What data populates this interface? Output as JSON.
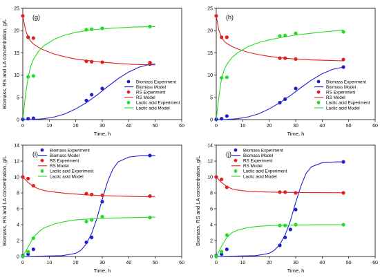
{
  "figure": {
    "common_xlabel": "Time, h",
    "common_ylabel": "Biomass, RS and LA concentration, g/L"
  },
  "chart_data": [
    {
      "type": "line",
      "panel": "(g)",
      "xlabel": "Time, h",
      "ylabel": "Biomass, RS and LA concentration, g/L",
      "xlim": [
        0,
        60
      ],
      "ylim": [
        0,
        25
      ],
      "xticks": [
        0,
        10,
        20,
        30,
        40,
        50,
        60
      ],
      "yticks": [
        0,
        5,
        10,
        15,
        20,
        25
      ],
      "legend_position": "center-right",
      "legend": [
        "Biomass Experiment",
        "Biomass Model",
        "RS Experiment",
        "RS Model",
        "Lactic acid Experiment",
        "Lactic acid Model"
      ],
      "series": [
        {
          "name": "Biomass Experiment",
          "kind": "points",
          "color": "#1f1fd1",
          "x": [
            0,
            2,
            4,
            24,
            26,
            30,
            48
          ],
          "y": [
            0.1,
            0.2,
            0.3,
            4.3,
            5.6,
            7.0,
            12.5
          ]
        },
        {
          "name": "Biomass Model",
          "kind": "line",
          "color": "#1f1fd1",
          "x": [
            0,
            4,
            8,
            12,
            16,
            20,
            24,
            28,
            32,
            36,
            40,
            44,
            48,
            50
          ],
          "y": [
            0.0,
            0.05,
            0.2,
            0.6,
            1.3,
            2.4,
            3.8,
            5.5,
            7.4,
            9.2,
            10.7,
            11.8,
            12.4,
            12.5
          ]
        },
        {
          "name": "RS Experiment",
          "kind": "points",
          "color": "#e02020",
          "x": [
            0,
            2,
            4,
            24,
            26,
            30,
            48
          ],
          "y": [
            23.3,
            18.5,
            18.3,
            13.1,
            13.0,
            12.9,
            12.8
          ]
        },
        {
          "name": "RS Model",
          "kind": "line",
          "color": "#e02020",
          "x": [
            0,
            1,
            2,
            3,
            4,
            6,
            8,
            12,
            16,
            20,
            24,
            30,
            36,
            42,
            50
          ],
          "y": [
            23.3,
            20.2,
            18.5,
            17.6,
            17.0,
            16.2,
            15.6,
            14.7,
            14.1,
            13.6,
            13.3,
            12.9,
            12.6,
            12.4,
            12.3
          ]
        },
        {
          "name": "Lactic acid Experiment",
          "kind": "points",
          "color": "#22dd22",
          "x": [
            2,
            4,
            24,
            26,
            30,
            48
          ],
          "y": [
            9.6,
            9.8,
            20.2,
            20.3,
            20.5,
            20.9
          ]
        },
        {
          "name": "Lactic acid Model",
          "kind": "line",
          "color": "#22dd22",
          "x": [
            0,
            1,
            2,
            3,
            4,
            6,
            8,
            12,
            16,
            20,
            24,
            30,
            36,
            42,
            50
          ],
          "y": [
            0.0,
            5.5,
            9.5,
            12.0,
            13.5,
            15.4,
            16.6,
            18.1,
            19.0,
            19.6,
            20.0,
            20.4,
            20.6,
            20.8,
            20.9
          ]
        }
      ]
    },
    {
      "type": "line",
      "panel": "(h)",
      "xlabel": "Time, h",
      "ylabel": "",
      "xlim": [
        0,
        60
      ],
      "ylim": [
        0,
        25
      ],
      "xticks": [
        0,
        10,
        20,
        30,
        40,
        50,
        60
      ],
      "yticks": [
        0,
        5,
        10,
        15,
        20,
        25
      ],
      "legend_position": "center-right",
      "legend": [
        "Biomass Experiment",
        "Biomass Model",
        "RS Experiment",
        "RS Model",
        "Lactic acid Experiment",
        "Lactic acid Model"
      ],
      "series": [
        {
          "name": "Biomass Experiment",
          "kind": "points",
          "color": "#1f1fd1",
          "x": [
            0,
            2,
            4,
            24,
            26,
            30,
            48
          ],
          "y": [
            0.1,
            0.2,
            0.8,
            3.8,
            4.6,
            7.0,
            11.8
          ]
        },
        {
          "name": "Biomass Model",
          "kind": "line",
          "color": "#1f1fd1",
          "x": [
            0,
            4,
            8,
            12,
            16,
            20,
            24,
            28,
            32,
            36,
            40,
            44,
            48
          ],
          "y": [
            0.0,
            0.05,
            0.2,
            0.6,
            1.3,
            2.4,
            3.8,
            5.4,
            7.2,
            8.9,
            10.3,
            11.3,
            11.8
          ]
        },
        {
          "name": "RS Experiment",
          "kind": "points",
          "color": "#e02020",
          "x": [
            0,
            2,
            4,
            24,
            26,
            30,
            48
          ],
          "y": [
            23.3,
            18.5,
            18.5,
            13.8,
            13.8,
            13.6,
            13.5
          ]
        },
        {
          "name": "RS Model",
          "kind": "line",
          "color": "#e02020",
          "x": [
            0,
            1,
            2,
            3,
            4,
            6,
            8,
            12,
            16,
            20,
            24,
            30,
            36,
            42,
            48
          ],
          "y": [
            23.3,
            20.0,
            18.5,
            17.6,
            17.1,
            16.4,
            15.9,
            15.1,
            14.6,
            14.2,
            13.9,
            13.6,
            13.4,
            13.3,
            13.2
          ]
        },
        {
          "name": "Lactic acid Experiment",
          "kind": "points",
          "color": "#22dd22",
          "x": [
            2,
            4,
            24,
            26,
            30,
            48
          ],
          "y": [
            9.4,
            9.5,
            18.8,
            18.9,
            19.4,
            19.7
          ]
        },
        {
          "name": "Lactic acid Model",
          "kind": "line",
          "color": "#22dd22",
          "x": [
            0,
            1,
            2,
            3,
            4,
            6,
            8,
            12,
            16,
            20,
            24,
            30,
            36,
            42,
            48
          ],
          "y": [
            0.0,
            5.3,
            9.2,
            11.2,
            12.4,
            14.0,
            15.0,
            16.4,
            17.3,
            17.9,
            18.4,
            19.0,
            19.4,
            19.8,
            20.1
          ]
        }
      ]
    },
    {
      "type": "line",
      "panel": "(i)",
      "xlabel": "Time, h",
      "ylabel": "Biomass, RS and LA concentration, g/L",
      "xlim": [
        0,
        60
      ],
      "ylim": [
        0,
        14
      ],
      "xticks": [
        0,
        10,
        20,
        30,
        40,
        50,
        60
      ],
      "yticks": [
        0,
        2,
        4,
        6,
        8,
        10,
        12,
        14
      ],
      "legend_position": "top-center",
      "legend": [
        "Biomass Experiment",
        "Biomass Model",
        "RS Experiment",
        "RS Model",
        "Lactic acid Experiment",
        "Lactic acid Model"
      ],
      "series": [
        {
          "name": "Biomass Experiment",
          "kind": "points",
          "color": "#1f1fd1",
          "x": [
            0,
            2,
            4,
            24,
            26,
            30,
            48
          ],
          "y": [
            0.1,
            0.3,
            0.9,
            1.8,
            2.4,
            6.9,
            12.7
          ]
        },
        {
          "name": "Biomass Model",
          "kind": "line",
          "color": "#1f1fd1",
          "x": [
            0,
            15,
            20,
            22,
            24,
            26,
            28,
            30,
            32,
            34,
            36,
            40,
            45,
            50
          ],
          "y": [
            0.0,
            0.1,
            0.4,
            0.8,
            1.6,
            2.9,
            4.8,
            7.2,
            9.4,
            11.0,
            11.9,
            12.5,
            12.7,
            12.7
          ]
        },
        {
          "name": "RS Experiment",
          "kind": "points",
          "color": "#e02020",
          "x": [
            0,
            2,
            4,
            24,
            26,
            30,
            48
          ],
          "y": [
            10.0,
            9.8,
            8.9,
            7.9,
            7.8,
            7.7,
            7.6
          ]
        },
        {
          "name": "RS Model",
          "kind": "line",
          "color": "#e02020",
          "x": [
            0,
            2,
            4,
            6,
            8,
            12,
            16,
            20,
            24,
            30,
            36,
            42,
            50
          ],
          "y": [
            10.0,
            9.3,
            8.8,
            8.5,
            8.3,
            8.1,
            7.95,
            7.85,
            7.75,
            7.65,
            7.6,
            7.55,
            7.5
          ]
        },
        {
          "name": "Lactic acid Experiment",
          "kind": "points",
          "color": "#22dd22",
          "x": [
            0,
            2,
            4,
            24,
            26,
            30,
            48
          ],
          "y": [
            0.0,
            0.6,
            2.3,
            4.4,
            4.6,
            5.0,
            4.9
          ]
        },
        {
          "name": "Lactic acid Model",
          "kind": "line",
          "color": "#22dd22",
          "x": [
            0,
            2,
            4,
            6,
            8,
            12,
            16,
            20,
            24,
            30,
            36,
            42,
            50
          ],
          "y": [
            0.0,
            1.2,
            2.4,
            3.1,
            3.6,
            4.1,
            4.4,
            4.6,
            4.7,
            4.8,
            4.85,
            4.9,
            4.95
          ]
        }
      ]
    },
    {
      "type": "line",
      "panel": "(j)",
      "xlabel": "Time, h",
      "ylabel": "Biomass, RS and LA concentration, g/L",
      "xlim": [
        0,
        60
      ],
      "ylim": [
        0,
        14
      ],
      "xticks": [
        0,
        10,
        20,
        30,
        40,
        50,
        60
      ],
      "yticks": [
        0,
        2,
        4,
        6,
        8,
        10,
        12,
        14
      ],
      "legend_position": "top-center",
      "legend": [
        "Biomass Experiment",
        "Biomass Model",
        "RS Experiment",
        "RS Model",
        "Lactic acid Experiment",
        "Lactic acid Model"
      ],
      "series": [
        {
          "name": "Biomass Experiment",
          "kind": "points",
          "color": "#1f1fd1",
          "x": [
            0,
            2,
            4,
            24,
            26,
            28,
            30,
            48
          ],
          "y": [
            0.1,
            0.3,
            0.9,
            1.4,
            2.4,
            3.4,
            5.9,
            11.9
          ]
        },
        {
          "name": "Biomass Model",
          "kind": "line",
          "color": "#1f1fd1",
          "x": [
            0,
            15,
            20,
            22,
            24,
            26,
            28,
            30,
            32,
            34,
            36,
            40,
            45,
            48
          ],
          "y": [
            0.0,
            0.1,
            0.4,
            0.8,
            1.5,
            2.7,
            4.5,
            6.8,
            8.9,
            10.5,
            11.3,
            11.8,
            11.9,
            11.9
          ]
        },
        {
          "name": "RS Experiment",
          "kind": "points",
          "color": "#e02020",
          "x": [
            0,
            2,
            4,
            24,
            26,
            30,
            48
          ],
          "y": [
            10.0,
            9.7,
            8.7,
            8.1,
            8.1,
            8.0,
            8.0
          ]
        },
        {
          "name": "RS Model",
          "kind": "line",
          "color": "#e02020",
          "x": [
            0,
            2,
            4,
            6,
            8,
            12,
            16,
            20,
            24,
            30,
            36,
            42,
            48
          ],
          "y": [
            10.0,
            9.3,
            8.8,
            8.5,
            8.35,
            8.2,
            8.15,
            8.1,
            8.08,
            8.05,
            8.04,
            8.03,
            8.02
          ]
        },
        {
          "name": "Lactic acid Experiment",
          "kind": "points",
          "color": "#22dd22",
          "x": [
            0,
            2,
            4,
            24,
            26,
            30,
            48
          ],
          "y": [
            0.0,
            0.6,
            2.7,
            3.9,
            3.9,
            4.0,
            4.0
          ]
        },
        {
          "name": "Lactic acid Model",
          "kind": "line",
          "color": "#22dd22",
          "x": [
            0,
            2,
            4,
            6,
            8,
            12,
            16,
            20,
            24,
            30,
            36,
            42,
            48
          ],
          "y": [
            0.0,
            1.3,
            2.4,
            3.0,
            3.3,
            3.65,
            3.8,
            3.88,
            3.92,
            3.96,
            3.98,
            4.0,
            4.0
          ]
        }
      ]
    }
  ]
}
